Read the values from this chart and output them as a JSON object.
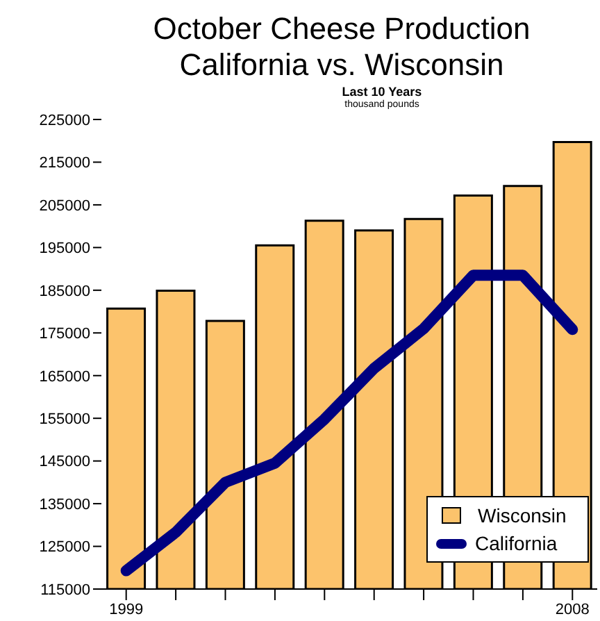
{
  "chart_data": {
    "type": "bar",
    "title": "October Cheese Production\nCalifornia vs. Wisconsin",
    "subtitle": "Last 10 Years",
    "ylabel": "thousand pounds",
    "categories": [
      "1999",
      null,
      null,
      null,
      null,
      null,
      null,
      null,
      null,
      "2008"
    ],
    "series": [
      {
        "name": "Wisconsin",
        "color": "#fcc36c",
        "values": [
          180700,
          184900,
          177800,
          195500,
          201300,
          199000,
          201700,
          207200,
          209400,
          219700
        ]
      },
      {
        "name": "California",
        "type": "line",
        "color": "#000080",
        "values": [
          119300,
          128300,
          140000,
          144500,
          154800,
          166700,
          176000,
          188500,
          188500,
          175800
        ]
      }
    ],
    "ylim": [
      115000,
      225000
    ],
    "yticks": [
      115000,
      125000,
      135000,
      145000,
      155000,
      165000,
      175000,
      185000,
      195000,
      205000,
      215000,
      225000
    ],
    "grid": false,
    "legend": "bottom right",
    "marker": "none",
    "line_style": "solid"
  }
}
